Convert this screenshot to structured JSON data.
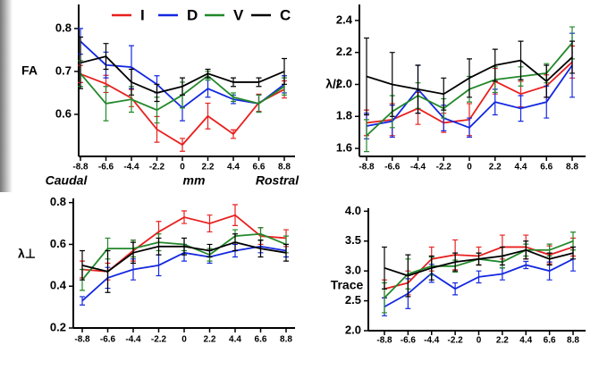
{
  "chart_data": [
    {
      "type": "line",
      "ylabel": "FA",
      "legend": "top",
      "annotations": [
        "Caudal",
        "mm",
        "Rostral"
      ],
      "x": [
        -8.8,
        -6.6,
        -4.4,
        -2.2,
        0,
        2.2,
        4.4,
        6.6,
        8.8
      ],
      "xticks": [
        -8.8,
        -6.6,
        -4.4,
        -2.2,
        0,
        2.2,
        4.4,
        6.6,
        8.8
      ],
      "xlim": [
        -9.6,
        9.6
      ],
      "ylim": [
        0.502,
        0.856
      ],
      "yticks": [
        0.6,
        0.7,
        0.8
      ],
      "series": [
        {
          "name": "I",
          "color": "#e8201f",
          "values": [
            0.694,
            0.671,
            0.638,
            0.565,
            0.529,
            0.596,
            0.554,
            0.627,
            0.658
          ],
          "errors": [
            0.02,
            0.02,
            0.02,
            0.03,
            0.015,
            0.03,
            0.01,
            0.02,
            0.02
          ]
        },
        {
          "name": "D",
          "color": "#1428e0",
          "values": [
            0.77,
            0.715,
            0.71,
            0.67,
            0.615,
            0.66,
            0.635,
            0.625,
            0.67
          ],
          "errors": [
            0.03,
            0.03,
            0.05,
            0.02,
            0.03,
            0.02,
            0.01,
            0.02,
            0.02
          ]
        },
        {
          "name": "V",
          "color": "#22882a",
          "values": [
            0.695,
            0.625,
            0.635,
            0.61,
            0.645,
            0.69,
            0.64,
            0.625,
            0.665
          ],
          "errors": [
            0.03,
            0.04,
            0.03,
            0.03,
            0.03,
            0.01,
            0.01,
            0.02,
            0.02
          ]
        },
        {
          "name": "C",
          "color": "#000000",
          "values": [
            0.72,
            0.735,
            0.675,
            0.65,
            0.665,
            0.695,
            0.675,
            0.675,
            0.7
          ],
          "errors": [
            0.06,
            0.03,
            0.03,
            0.02,
            0.02,
            0.01,
            0.01,
            0.01,
            0.03
          ]
        }
      ]
    },
    {
      "type": "line",
      "ylabel": "λ//",
      "x": [
        -8.8,
        -6.6,
        -4.4,
        -2.2,
        0,
        2.2,
        4.4,
        6.6,
        8.8
      ],
      "xticks": [
        -8.8,
        -6.6,
        -4.4,
        -2.2,
        0,
        2.2,
        4.4,
        6.6,
        8.8
      ],
      "xlim": [
        -9.6,
        9.6
      ],
      "ylim": [
        1.55,
        2.5
      ],
      "yticks": [
        1.6,
        1.8,
        {
          "value": 2,
          "label": "2.0"
        },
        2.2,
        2.4
      ],
      "series": [
        {
          "color": "#e8201f",
          "values": [
            1.76,
            1.78,
            1.85,
            1.76,
            1.78,
            2.02,
            1.94,
            1.99,
            2.14
          ],
          "errors": [
            0.08,
            0.1,
            0.1,
            0.06,
            0.1,
            0.08,
            0.08,
            0.07,
            0.1
          ]
        },
        {
          "color": "#1428e0",
          "values": [
            1.74,
            1.77,
            1.97,
            1.79,
            1.73,
            1.89,
            1.85,
            1.89,
            2.12
          ],
          "errors": [
            0.08,
            0.1,
            0.15,
            0.08,
            0.06,
            0.08,
            0.08,
            0.1,
            0.2
          ]
        },
        {
          "color": "#22882a",
          "values": [
            1.68,
            1.83,
            1.93,
            1.85,
            1.97,
            2.03,
            2.05,
            2.07,
            2.26
          ],
          "errors": [
            0.1,
            0.1,
            0.08,
            0.06,
            0.08,
            0.08,
            0.06,
            0.06,
            0.1
          ]
        },
        {
          "color": "#000000",
          "values": [
            2.05,
            2.0,
            1.97,
            1.94,
            2.04,
            2.12,
            2.15,
            2.02,
            2.17
          ],
          "errors": [
            0.24,
            0.2,
            0.15,
            0.1,
            0.12,
            0.1,
            0.12,
            0.1,
            0.1
          ]
        }
      ]
    },
    {
      "type": "line",
      "ylabel": "λ⊥",
      "x": [
        -8.8,
        -6.6,
        -4.4,
        -2.2,
        0,
        2.2,
        4.4,
        6.6,
        8.8
      ],
      "xticks": [
        -8.8,
        -6.6,
        -4.4,
        -2.2,
        0,
        2.2,
        4.4,
        6.6,
        8.8
      ],
      "xlim": [
        -9.6,
        9.6
      ],
      "ylim": [
        0.2,
        0.82
      ],
      "yticks": [
        0.2,
        0.4,
        0.6,
        0.8
      ],
      "series": [
        {
          "color": "#e8201f",
          "values": [
            0.48,
            0.47,
            0.57,
            0.66,
            0.73,
            0.7,
            0.74,
            0.64,
            0.63
          ],
          "errors": [
            0.04,
            0.04,
            0.05,
            0.05,
            0.03,
            0.04,
            0.05,
            0.04,
            0.04
          ]
        },
        {
          "color": "#1428e0",
          "values": [
            0.33,
            0.44,
            0.48,
            0.5,
            0.56,
            0.54,
            0.57,
            0.59,
            0.57
          ],
          "errors": [
            0.02,
            0.05,
            0.05,
            0.05,
            0.04,
            0.03,
            0.03,
            0.03,
            0.03
          ]
        },
        {
          "color": "#22882a",
          "values": [
            0.43,
            0.58,
            0.58,
            0.61,
            0.6,
            0.55,
            0.64,
            0.65,
            0.6
          ],
          "errors": [
            0.05,
            0.05,
            0.04,
            0.04,
            0.03,
            0.03,
            0.03,
            0.03,
            0.04
          ]
        },
        {
          "color": "#000000",
          "values": [
            0.5,
            0.47,
            0.56,
            0.59,
            0.59,
            0.57,
            0.61,
            0.58,
            0.56
          ],
          "errors": [
            0.07,
            0.1,
            0.05,
            0.04,
            0.04,
            0.03,
            0.04,
            0.04,
            0.04
          ]
        }
      ]
    },
    {
      "type": "line",
      "ylabel": "Trace",
      "x": [
        -8.8,
        -6.6,
        -4.4,
        -2.2,
        0,
        2.2,
        4.4,
        6.6,
        8.8
      ],
      "xticks": [
        -8.8,
        -6.6,
        -4.4,
        -2.2,
        0,
        2.2,
        4.4,
        6.6,
        8.8
      ],
      "xlim": [
        -9.6,
        9.6
      ],
      "ylim": [
        2.0,
        4.05
      ],
      "yticks": [
        {
          "value": 2,
          "label": "2.0"
        },
        2.5,
        {
          "value": 3,
          "label": "3.0"
        },
        3.5,
        {
          "value": 4,
          "label": "4.0"
        }
      ],
      "series": [
        {
          "color": "#e8201f",
          "values": [
            2.7,
            2.8,
            3.2,
            3.27,
            3.25,
            3.4,
            3.4,
            3.27,
            3.4
          ],
          "errors": [
            0.15,
            0.2,
            0.2,
            0.25,
            0.15,
            0.2,
            0.2,
            0.15,
            0.15
          ]
        },
        {
          "color": "#1428e0",
          "values": [
            2.4,
            2.62,
            2.96,
            2.7,
            2.9,
            2.95,
            3.1,
            3.0,
            3.2
          ],
          "errors": [
            0.15,
            0.25,
            0.15,
            0.1,
            0.1,
            0.1,
            0.06,
            0.15,
            0.2
          ]
        },
        {
          "color": "#22882a",
          "values": [
            2.55,
            2.95,
            3.08,
            3.08,
            3.2,
            3.15,
            3.35,
            3.35,
            3.5
          ],
          "errors": [
            0.25,
            0.25,
            0.15,
            0.1,
            0.1,
            0.1,
            0.1,
            0.1,
            0.15
          ]
        },
        {
          "color": "#000000",
          "values": [
            3.05,
            2.92,
            3.05,
            3.15,
            3.2,
            3.25,
            3.35,
            3.2,
            3.3
          ],
          "errors": [
            0.35,
            0.35,
            0.2,
            0.15,
            0.1,
            0.15,
            0.15,
            0.1,
            0.1
          ]
        }
      ]
    }
  ]
}
